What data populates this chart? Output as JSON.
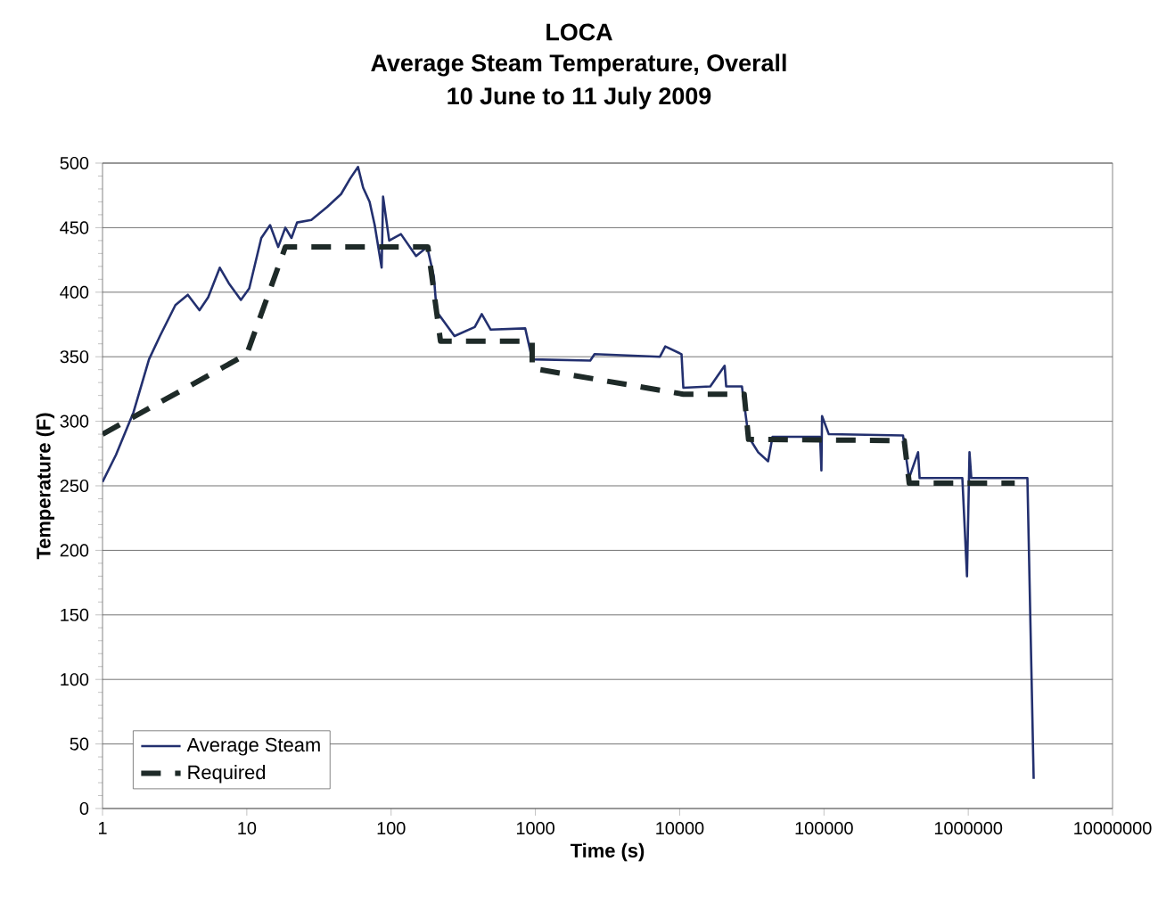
{
  "chart_data": {
    "type": "line",
    "title": "LOCA",
    "subtitle": "Average Steam Temperature, Overall",
    "annotations": [
      "10 June to 11 July 2009"
    ],
    "xlabel": "Time (s)",
    "ylabel": "Temperature (F)",
    "log": "x",
    "xlim": [
      1,
      10000000
    ],
    "xticks": [
      1,
      10,
      100,
      1000,
      10000,
      100000,
      1000000,
      10000000
    ],
    "ylim": [
      0,
      500
    ],
    "yticks": [
      0,
      50,
      100,
      150,
      200,
      250,
      300,
      350,
      400,
      450,
      500
    ],
    "grid": "y",
    "legend": "bottom left",
    "marker": "none",
    "series": [
      {
        "name": "Average Steam",
        "color": "#23306f",
        "line_style": "solid",
        "x": [
          1,
          1.24,
          1.64,
          2.1,
          2.5,
          3.2,
          3.9,
          4.7,
          5.4,
          6.5,
          7.5,
          9.1,
          10.4,
          12.6,
          14.5,
          16.5,
          18.5,
          20.4,
          22.3,
          28,
          36,
          45,
          52,
          59,
          64,
          71,
          77,
          86,
          88,
          97,
          117,
          149,
          178,
          198,
          207,
          275,
          380,
          425,
          490,
          850,
          950,
          2400,
          2570,
          7300,
          7950,
          10300,
          10600,
          16300,
          20500,
          21000,
          27000,
          30000,
          35000,
          41000,
          44000,
          94000,
          96000,
          97000,
          108000,
          353000,
          389000,
          449000,
          460000,
          910000,
          980000,
          1020000,
          1050000,
          2570000,
          2840000
        ],
        "values": [
          253,
          274,
          307,
          348,
          366,
          390,
          398,
          386,
          396,
          419,
          407,
          394,
          403,
          442,
          452,
          435,
          450,
          442,
          454,
          456,
          466,
          476,
          488,
          497,
          481,
          470,
          452,
          419,
          474,
          440,
          445,
          428,
          435,
          412,
          385,
          366,
          373,
          383,
          371,
          372,
          348,
          347,
          352,
          350,
          358,
          352,
          326,
          327,
          343,
          327,
          327,
          288,
          276,
          269,
          288,
          288,
          262,
          304,
          290,
          289,
          256,
          276,
          256,
          256,
          180,
          276,
          256,
          256,
          23
        ]
      },
      {
        "name": "Required",
        "color": "#1e2a28",
        "line_style": "dashed",
        "x": [
          1,
          10,
          18.5,
          180,
          220,
          950,
          950,
          10600,
          28000,
          30000,
          360000,
          390000,
          2100000
        ],
        "values": [
          290,
          352,
          435,
          435,
          362,
          362,
          341,
          321,
          321,
          286,
          285,
          252,
          252
        ]
      }
    ]
  }
}
